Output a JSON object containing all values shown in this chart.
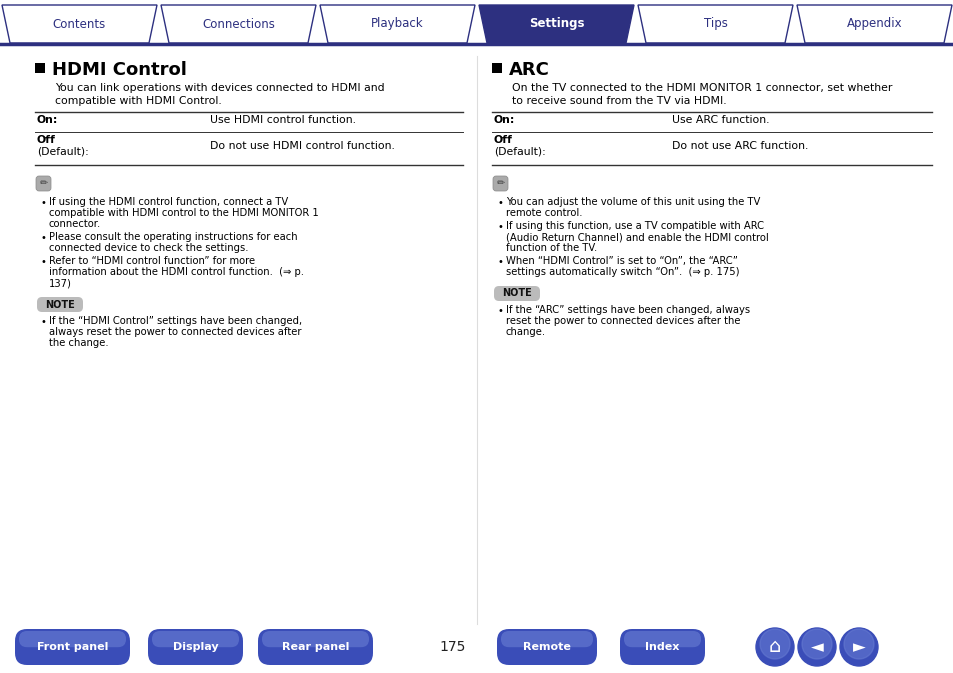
{
  "bg_color": "#ffffff",
  "tab_color_active": "#2d3080",
  "tab_color_inactive": "#ffffff",
  "tab_border_color": "#3a3db5",
  "tab_line_color": "#2d3080",
  "tab_labels": [
    "Contents",
    "Connections",
    "Playback",
    "Settings",
    "Tips",
    "Appendix"
  ],
  "tab_active_index": 3,
  "bottom_btn_color": "#3a4db8",
  "bottom_btn_labels": [
    "Front panel",
    "Display",
    "Rear panel",
    "Remote",
    "Index"
  ],
  "page_number": "175",
  "hdmi_title": "HDMI Control",
  "hdmi_intro_1": "You can link operations with devices connected to HDMI and",
  "hdmi_intro_2": "compatible with HDMI Control.",
  "hdmi_on_label": "On:",
  "hdmi_on_text": "Use HDMI control function.",
  "hdmi_off_label": "Off",
  "hdmi_off_default": "(Default):",
  "hdmi_off_text": "Do not use HDMI control function.",
  "hdmi_notes": [
    "If using the HDMI control function, connect a TV compatible with HDMI control to the HDMI MONITOR 1 connector.",
    "Please consult the operating instructions for each connected device to check the settings.",
    "Refer to “HDMI control function” for more information about the HDMI control function.  (⇒ p. 137)"
  ],
  "hdmi_note_text": "If the “HDMI Control” settings have been changed, always reset the power to connected devices after the change.",
  "arc_title": "ARC",
  "arc_intro_1": "On the TV connected to the HDMI MONITOR 1 connector, set whether",
  "arc_intro_2": "to receive sound from the TV via HDMI.",
  "arc_on_label": "On:",
  "arc_on_text": "Use ARC function.",
  "arc_off_label": "Off",
  "arc_off_default": "(Default):",
  "arc_off_text": "Do not use ARC function.",
  "arc_notes": [
    "You can adjust the volume of this unit using the TV remote control.",
    "If using this function, use a TV compatible with ARC (Audio Return Channel) and enable the HDMI control function of the TV.",
    "When “HDMI Control” is set to “On”, the “ARC” settings automatically switch “On”.  (⇒ p. 175)"
  ],
  "arc_note_text": "If the “ARC” settings have been changed, always reset the power to connected devices after the change.",
  "note_bg": "#bbbbbb",
  "dark_blue": "#2d3080",
  "mid_blue": "#3a4db8",
  "line_dark": "#333333",
  "line_light": "#aaaaaa"
}
